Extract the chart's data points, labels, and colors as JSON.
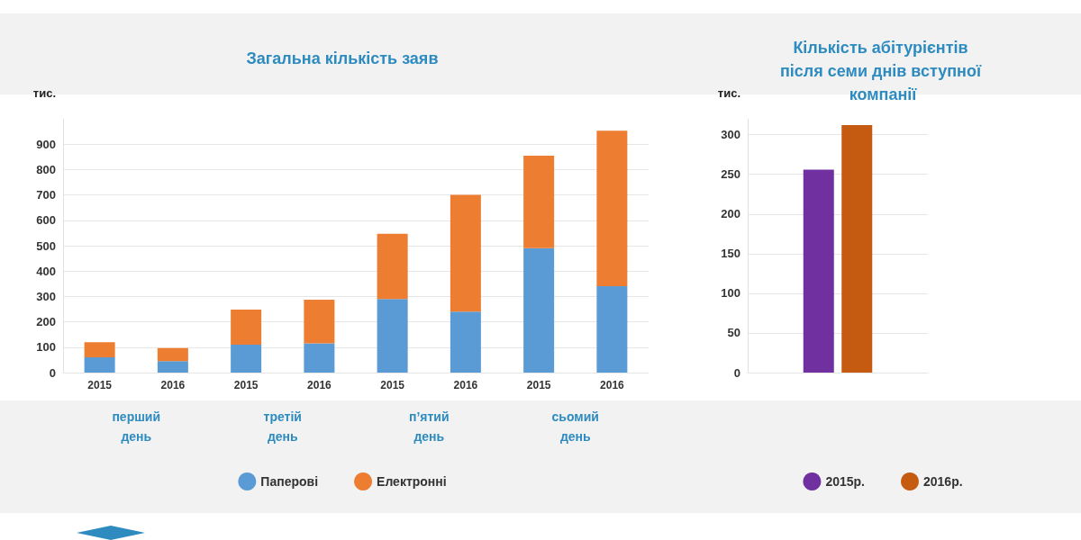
{
  "chart_data": [
    {
      "type": "bar",
      "title": "Загальна кількість заяв",
      "ylabel": "тис.",
      "stacked": true,
      "categories": [
        "2015",
        "2016",
        "2015",
        "2016",
        "2015",
        "2016",
        "2015",
        "2016"
      ],
      "series": [
        {
          "name": "Паперові",
          "color": "#5b9bd5",
          "values": [
            60,
            45,
            110,
            115,
            290,
            240,
            490,
            340
          ]
        },
        {
          "name": "Електронні",
          "color": "#ed7d31",
          "values": [
            60,
            52,
            138,
            172,
            257,
            460,
            365,
            613
          ]
        }
      ],
      "annotations": [
        "перший день",
        "третій день",
        "п’ятий день",
        "сьомий день"
      ],
      "ylim": [
        0,
        1000
      ],
      "yticks": [
        0,
        100,
        200,
        300,
        400,
        500,
        600,
        700,
        800,
        900
      ],
      "grid": "y",
      "legend": "bottom"
    },
    {
      "type": "bar",
      "title": "Кількість абітурієнтів після семи днів вступної компанії",
      "ylabel": "тис.",
      "categories": [
        null
      ],
      "series": [
        {
          "name": "2015р.",
          "color": "#7030a0",
          "values": [
            256
          ]
        },
        {
          "name": "2016р.",
          "color": "#c55a11",
          "values": [
            312
          ]
        }
      ],
      "ylim": [
        0,
        320
      ],
      "yticks": [
        0,
        50,
        100,
        150,
        200,
        250,
        300
      ],
      "grid": "y",
      "legend": "bottom"
    }
  ]
}
